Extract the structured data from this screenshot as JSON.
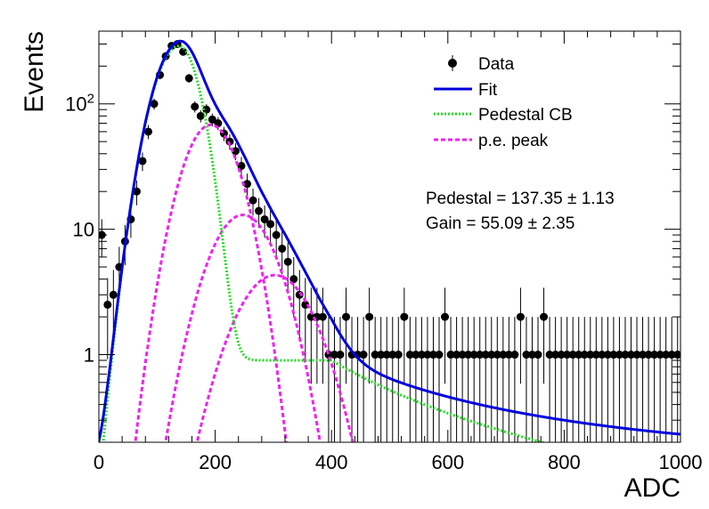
{
  "chart_data": {
    "type": "scatter",
    "title": "",
    "xlabel": "ADC",
    "ylabel": "Events",
    "xlim": [
      0,
      1000
    ],
    "ylim": [
      0.2,
      380
    ],
    "yscale": "log",
    "grid": false,
    "legend_position": "top-right",
    "x_ticks": [
      "0",
      "200",
      "400",
      "600",
      "800",
      "1000"
    ],
    "y_ticks": [
      "1",
      "10",
      "10²"
    ],
    "legend": {
      "data": "Data",
      "fit": "Fit",
      "pedestal": "Pedestal CB",
      "pe": "p.e. peak"
    },
    "annotations": {
      "pedestal": "Pedestal = 137.35 ± 1.13",
      "gain": "Gain = 55.09 ± 2.35"
    },
    "colors": {
      "data": "#000000",
      "fit": "#0000dd",
      "pedestal": "#22dd22",
      "pe": "#ee22ee"
    },
    "fit_params": {
      "pedestal_center": 137.35,
      "gain": 55.09,
      "pedestal_sigma": 34,
      "pedestal_amplitude": 290,
      "pedestal_tail_level": 0.9,
      "pe_amplitudes": [
        68,
        13,
        4.3
      ],
      "pe_sigma_base": 38,
      "pe_sigma_step": 8,
      "background": 0.12
    },
    "series": [
      {
        "name": "Data",
        "x": [
          5,
          15,
          25,
          35,
          45,
          55,
          65,
          75,
          85,
          95,
          105,
          115,
          125,
          135,
          145,
          155,
          165,
          175,
          185,
          195,
          205,
          215,
          225,
          235,
          245,
          255,
          265,
          275,
          285,
          295,
          305,
          315,
          325,
          335,
          345,
          355,
          365,
          375,
          385,
          395,
          405,
          415,
          425,
          435,
          445,
          455,
          465,
          475,
          485,
          495,
          505,
          515,
          525,
          535,
          545,
          555,
          565,
          575,
          585,
          595,
          605,
          615,
          625,
          635,
          645,
          655,
          665,
          675,
          685,
          695,
          705,
          715,
          725,
          735,
          745,
          755,
          765,
          775,
          785,
          795,
          805,
          815,
          825,
          835,
          845,
          855,
          865,
          875,
          885,
          895,
          905,
          915,
          925,
          935,
          945,
          955,
          965,
          975,
          985,
          995
        ],
        "y": [
          9,
          2.5,
          3,
          5,
          8,
          12,
          20,
          35,
          60,
          100,
          170,
          240,
          290,
          300,
          260,
          160,
          95,
          80,
          90,
          75,
          70,
          58,
          50,
          42,
          32,
          23,
          17,
          14,
          12,
          11,
          9,
          7,
          5.5,
          4,
          3,
          2.5,
          2,
          2,
          2,
          1,
          1,
          1,
          2,
          1,
          1,
          1,
          2,
          1,
          1,
          1,
          1,
          1,
          2,
          1,
          1,
          1,
          1,
          1,
          1,
          2,
          1,
          1,
          1,
          1,
          1,
          1,
          1,
          1,
          1,
          1,
          1,
          1,
          2,
          1,
          1,
          1,
          2,
          1,
          1,
          1,
          1,
          1,
          1,
          1,
          1,
          1,
          1,
          1,
          1,
          1,
          1,
          1,
          1,
          1,
          1,
          1,
          1,
          1,
          1,
          1
        ]
      }
    ]
  }
}
